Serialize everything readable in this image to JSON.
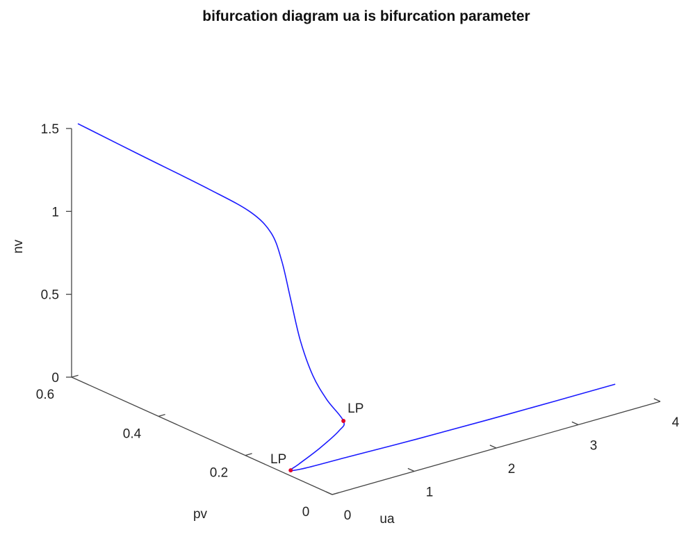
{
  "chart_data": {
    "type": "line3d",
    "title": "bifurcation diagram ua is bifurcation parameter",
    "xlabel": "ua",
    "ylabel": "pv",
    "zlabel": "nv",
    "xlim": [
      0,
      4
    ],
    "xticks": [
      0,
      1,
      2,
      3,
      4
    ],
    "ylim": [
      0,
      0.6
    ],
    "yticks": [
      0,
      0.2,
      0.4,
      0.6
    ],
    "zlim": [
      0,
      1.5
    ],
    "zticks": [
      0,
      0.5,
      1,
      1.5
    ],
    "series": [
      {
        "color": "#1a1aff",
        "x": [
          0.05,
          0.1,
          0.15,
          0.2,
          0.25,
          0.3,
          0.35,
          0.4,
          0.45,
          0.5,
          0.55,
          0.45,
          0.3,
          0.15,
          0.05,
          0.2,
          0.6,
          1.4,
          2.2,
          3.0,
          3.7
        ],
        "y": [
          0.595,
          0.464,
          0.313,
          0.227,
          0.188,
          0.173,
          0.162,
          0.149,
          0.13,
          0.107,
          0.078,
          0.069,
          0.085,
          0.105,
          0.105,
          0.099,
          0.078,
          0.069,
          0.06,
          0.051,
          0.047
        ],
        "z": [
          1.528,
          1.491,
          1.453,
          1.41,
          1.322,
          1.165,
          0.941,
          0.698,
          0.504,
          0.377,
          0.275,
          0.241,
          0.138,
          0.039,
          0.015,
          0.015,
          0.05,
          0.057,
          0.069,
          0.084,
          0.091
        ]
      }
    ],
    "points": [
      {
        "label": "LP",
        "color": "#e0002a",
        "x": 0.55,
        "y": 0.078,
        "z": 0.275
      },
      {
        "label": "LP",
        "color": "#e0002a",
        "x": 0.05,
        "y": 0.105,
        "z": 0.015
      }
    ]
  }
}
